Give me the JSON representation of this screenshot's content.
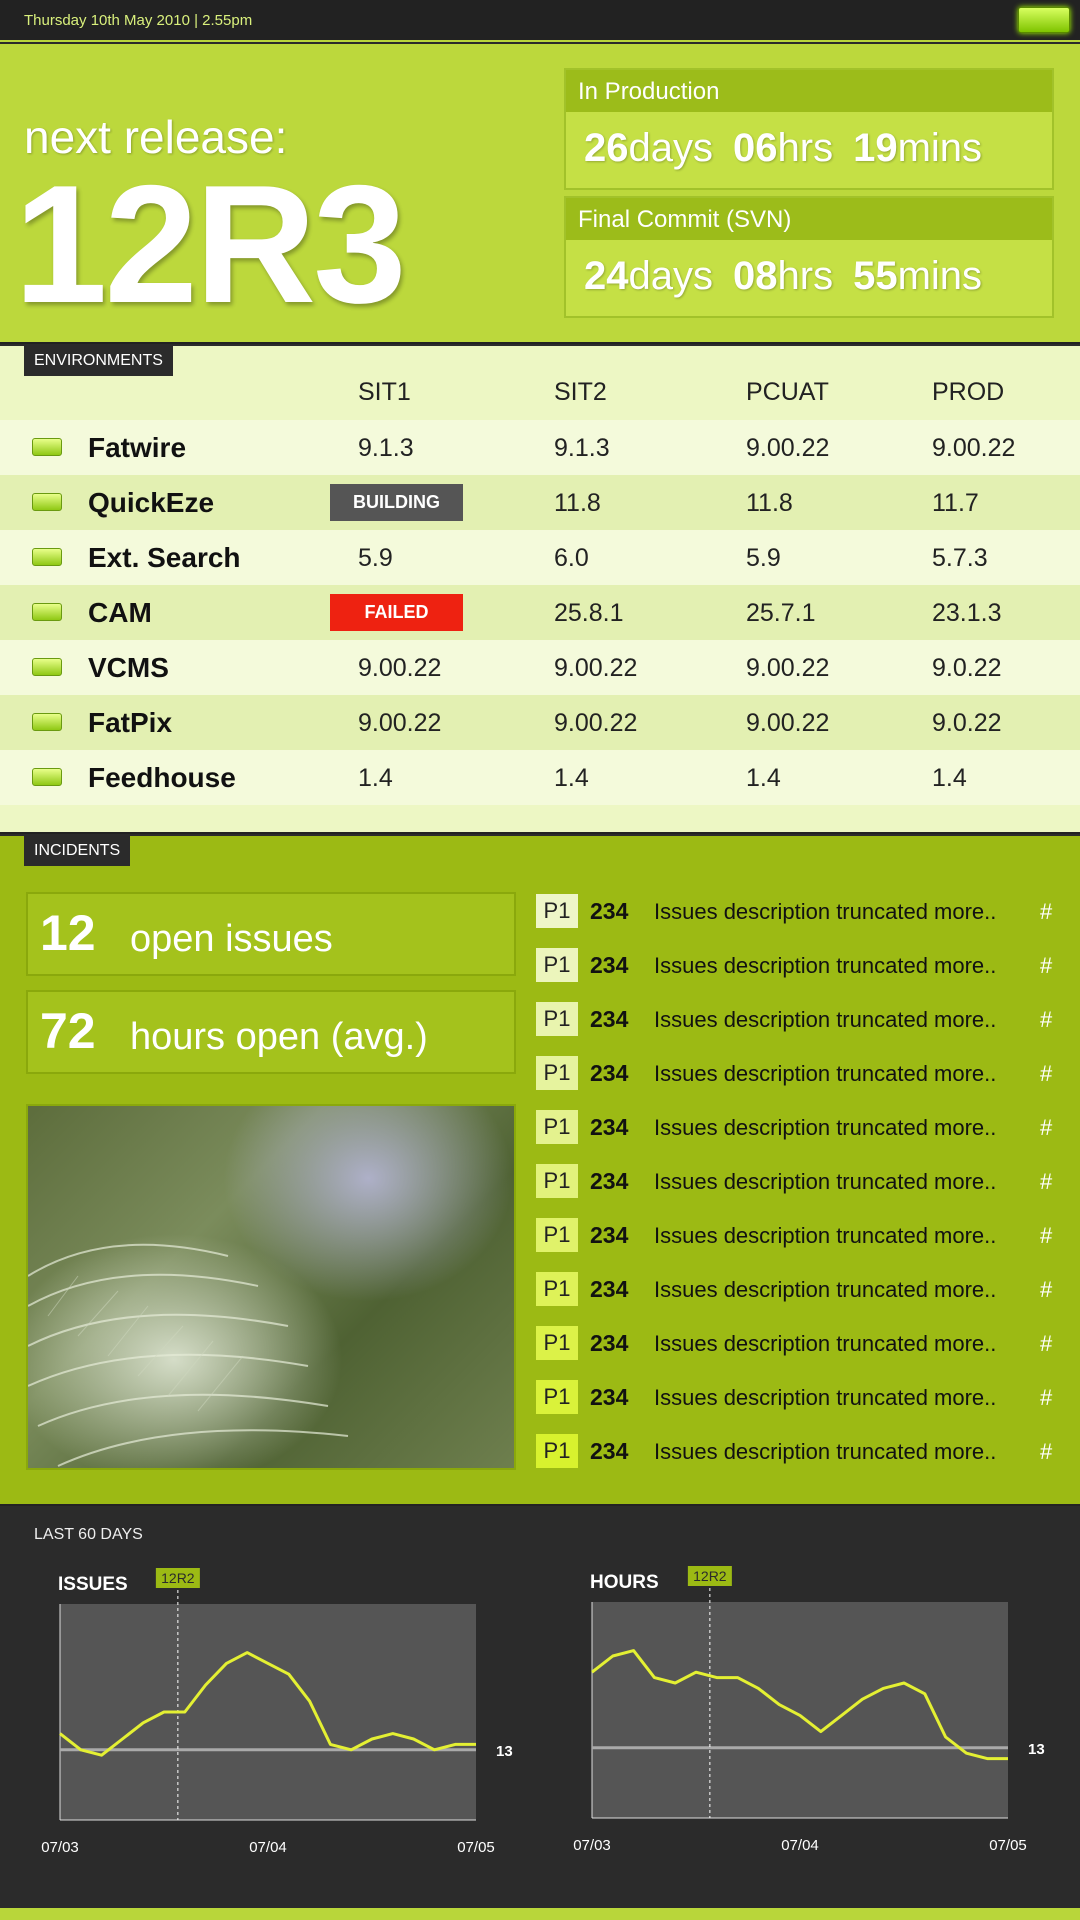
{
  "topbar": {
    "datetime": "Thursday 10th May 2010  |  2.55pm"
  },
  "hero": {
    "prefix": "next release:",
    "release": "12R3",
    "countdowns": [
      {
        "label": "In Production",
        "days": "26",
        "hrs": "06",
        "mins": "19"
      },
      {
        "label": "Final Commit (SVN)",
        "days": "24",
        "hrs": "08",
        "mins": "55"
      }
    ],
    "units": {
      "days": "days",
      "hrs": "hrs",
      "mins": "mins"
    }
  },
  "environments": {
    "tag": "ENVIRONMENTS",
    "columns": [
      "SIT1",
      "SIT2",
      "PCUAT",
      "PROD"
    ],
    "rows": [
      {
        "name": "Fatwire",
        "values": [
          "9.1.3",
          "9.1.3",
          "9.00.22",
          "9.00.22"
        ]
      },
      {
        "name": "QuickEze",
        "values": [
          "BUILDING",
          "11.8",
          "11.8",
          "11.7"
        ]
      },
      {
        "name": "Ext. Search",
        "values": [
          "5.9",
          "6.0",
          "5.9",
          "5.7.3"
        ]
      },
      {
        "name": "CAM",
        "values": [
          "FAILED",
          "25.8.1",
          "25.7.1",
          "23.1.3"
        ]
      },
      {
        "name": "VCMS",
        "values": [
          "9.00.22",
          "9.00.22",
          "9.00.22",
          "9.0.22"
        ]
      },
      {
        "name": "FatPix",
        "values": [
          "9.00.22",
          "9.00.22",
          "9.00.22",
          "9.0.22"
        ]
      },
      {
        "name": "Feedhouse",
        "values": [
          "1.4",
          "1.4",
          "1.4",
          "1.4"
        ]
      }
    ]
  },
  "incidents": {
    "tag": "INCIDENTS",
    "open_issues": {
      "num": "12",
      "label": "open issues"
    },
    "hours_open": {
      "num": "72",
      "label": "hours open (avg.)"
    },
    "issues": [
      {
        "priority": "P1",
        "id": "234",
        "desc": "Issues description truncated more..",
        "link": "#",
        "color": "#eef6c8"
      },
      {
        "priority": "P1",
        "id": "234",
        "desc": "Issues description truncated more..",
        "link": "#",
        "color": "#ecf5bc"
      },
      {
        "priority": "P1",
        "id": "234",
        "desc": "Issues description truncated more..",
        "link": "#",
        "color": "#e9f4ae"
      },
      {
        "priority": "P1",
        "id": "234",
        "desc": "Issues description truncated more..",
        "link": "#",
        "color": "#e6f39e"
      },
      {
        "priority": "P1",
        "id": "234",
        "desc": "Issues description truncated more..",
        "link": "#",
        "color": "#e4f28e"
      },
      {
        "priority": "P1",
        "id": "234",
        "desc": "Issues description truncated more..",
        "link": "#",
        "color": "#e2f27c"
      },
      {
        "priority": "P1",
        "id": "234",
        "desc": "Issues description truncated more..",
        "link": "#",
        "color": "#e0f26a"
      },
      {
        "priority": "P1",
        "id": "234",
        "desc": "Issues description truncated more..",
        "link": "#",
        "color": "#def258"
      },
      {
        "priority": "P1",
        "id": "234",
        "desc": "Issues description truncated more..",
        "link": "#",
        "color": "#dcf248"
      },
      {
        "priority": "P1",
        "id": "234",
        "desc": "Issues description truncated more..",
        "link": "#",
        "color": "#daf23a"
      },
      {
        "priority": "P1",
        "id": "234",
        "desc": "Issues description truncated more..",
        "link": "#",
        "color": "#d8f22e"
      }
    ]
  },
  "charts_section": {
    "title": "LAST 60 DAYS"
  },
  "chart_data": [
    {
      "type": "line",
      "title": "ISSUES",
      "marker_label": "12R2",
      "marker_x": 17,
      "x_labels": [
        "07/03",
        "07/04",
        "07/05"
      ],
      "reference_value": 13,
      "reference_label": "13",
      "ylim": [
        0,
        40
      ],
      "x": [
        0,
        3,
        6,
        9,
        12,
        15,
        18,
        21,
        24,
        27,
        30,
        33,
        36,
        39,
        42,
        45,
        48,
        51,
        54,
        57,
        60
      ],
      "values": [
        16,
        13,
        12,
        15,
        18,
        20,
        20,
        25,
        29,
        31,
        29,
        27,
        22,
        14,
        13,
        15,
        16,
        15,
        13,
        14,
        14
      ],
      "color": "#e4f033"
    },
    {
      "type": "line",
      "title": "HOURS",
      "marker_label": "12R2",
      "marker_x": 17,
      "x_labels": [
        "07/03",
        "07/04",
        "07/05"
      ],
      "reference_value": 13,
      "reference_label": "13",
      "ylim": [
        0,
        40
      ],
      "x": [
        0,
        3,
        6,
        9,
        12,
        15,
        18,
        21,
        24,
        27,
        30,
        33,
        36,
        39,
        42,
        45,
        48,
        51,
        54,
        57,
        60
      ],
      "values": [
        27,
        30,
        31,
        26,
        25,
        27,
        26,
        26,
        24,
        21,
        19,
        16,
        19,
        22,
        24,
        25,
        23,
        15,
        12,
        11,
        11
      ],
      "color": "#e4f033"
    }
  ]
}
